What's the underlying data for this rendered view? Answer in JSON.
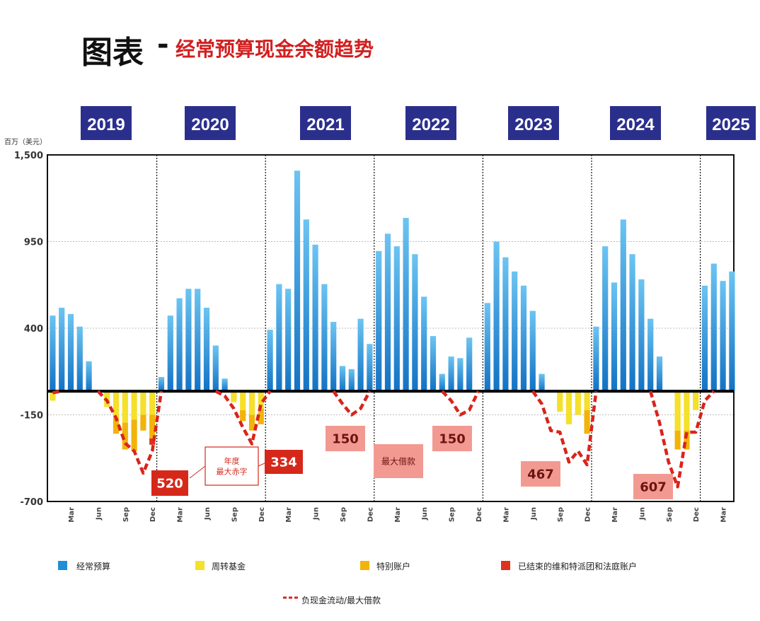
{
  "header": {
    "title_main": "图表",
    "title_dash": "-",
    "title_sub": "经常预算现金余额趋势"
  },
  "chart_data": {
    "type": "bar",
    "unit_label": "百万（美元）",
    "ylim": [
      -700,
      1500
    ],
    "yticks": [
      "1,500",
      "950",
      "400",
      "-150",
      "-700"
    ],
    "ytick_values": [
      1500,
      950,
      400,
      -150,
      -700
    ],
    "years": [
      "2019",
      "2020",
      "2021",
      "2022",
      "2023",
      "2024",
      "2025"
    ],
    "month_ticks": [
      "Mar",
      "Jun",
      "Sep",
      "Dec"
    ],
    "grid": "dashed horizontal",
    "colors": {
      "regular_budget": "#1e8fd6",
      "working_capital": "#f5e02a",
      "special_account": "#f2b40a",
      "closed_missions": "#e0301e",
      "negative_line": "#d9241c",
      "year_box": "#2b2f8c",
      "callout_dark": "#d6281a",
      "callout_light": "#f29a92"
    },
    "series": [
      {
        "name": "经常预算",
        "values": [
          480,
          530,
          490,
          410,
          190,
          0,
          0,
          0,
          0,
          0,
          0,
          0,
          90,
          480,
          590,
          650,
          650,
          530,
          290,
          80,
          0,
          0,
          0,
          0,
          390,
          680,
          650,
          1400,
          1090,
          930,
          680,
          440,
          160,
          140,
          460,
          300,
          890,
          1000,
          920,
          1100,
          870,
          600,
          350,
          110,
          220,
          210,
          340,
          0,
          560,
          950,
          850,
          760,
          670,
          510,
          110,
          0,
          0,
          0,
          0,
          0,
          410,
          920,
          690,
          1090,
          870,
          710,
          460,
          220,
          0,
          0,
          0,
          0,
          670,
          810,
          700,
          760
        ]
      },
      {
        "name": "周转基金",
        "values": [
          -60,
          0,
          0,
          0,
          0,
          0,
          -100,
          -170,
          -200,
          -180,
          -150,
          -150,
          0,
          0,
          0,
          0,
          0,
          0,
          0,
          0,
          -70,
          -120,
          -150,
          -110,
          0,
          0,
          0,
          0,
          0,
          0,
          0,
          0,
          0,
          0,
          0,
          0,
          0,
          0,
          0,
          0,
          0,
          0,
          0,
          0,
          0,
          0,
          0,
          0,
          0,
          0,
          0,
          0,
          0,
          0,
          0,
          0,
          -130,
          -210,
          -150,
          -120,
          0,
          0,
          0,
          0,
          0,
          0,
          0,
          0,
          0,
          -250,
          -250,
          -120,
          0,
          0,
          0,
          0
        ]
      },
      {
        "name": "特别账户",
        "values": [
          0,
          0,
          0,
          0,
          0,
          0,
          0,
          -100,
          -170,
          -200,
          -100,
          -150,
          0,
          0,
          0,
          0,
          0,
          0,
          0,
          0,
          0,
          -70,
          -100,
          -100,
          0,
          0,
          0,
          0,
          0,
          0,
          0,
          0,
          0,
          0,
          0,
          0,
          0,
          0,
          0,
          0,
          0,
          0,
          0,
          0,
          0,
          0,
          0,
          0,
          0,
          0,
          0,
          0,
          0,
          0,
          0,
          0,
          0,
          0,
          0,
          -150,
          0,
          0,
          0,
          0,
          0,
          0,
          0,
          0,
          0,
          -120,
          -120,
          0,
          0,
          0,
          0,
          0
        ]
      },
      {
        "name": "已结束的维和特派团和法庭账户",
        "values": [
          0,
          0,
          0,
          0,
          0,
          0,
          0,
          0,
          0,
          0,
          0,
          -40,
          0,
          0,
          0,
          0,
          0,
          0,
          0,
          0,
          0,
          0,
          0,
          0,
          0,
          0,
          0,
          0,
          0,
          0,
          0,
          0,
          0,
          0,
          0,
          0,
          0,
          0,
          0,
          0,
          0,
          0,
          0,
          0,
          0,
          0,
          0,
          0,
          0,
          0,
          0,
          0,
          0,
          0,
          0,
          0,
          0,
          0,
          0,
          0,
          0,
          0,
          0,
          0,
          0,
          0,
          0,
          0,
          0,
          0,
          0,
          0,
          0,
          0,
          0,
          0
        ]
      },
      {
        "name": "负现金流动/最大借款",
        "style": "dashed-line",
        "values": [
          -10,
          0,
          0,
          0,
          0,
          0,
          -60,
          -170,
          -330,
          -380,
          -520,
          -380,
          0,
          0,
          0,
          0,
          0,
          0,
          0,
          -30,
          -110,
          -230,
          -334,
          -80,
          0,
          0,
          0,
          0,
          0,
          0,
          0,
          0,
          -80,
          -150,
          -110,
          0,
          0,
          0,
          0,
          0,
          0,
          0,
          0,
          0,
          -60,
          -150,
          -120,
          0,
          0,
          0,
          0,
          0,
          0,
          0,
          -80,
          -250,
          -260,
          -450,
          -380,
          -467,
          0,
          0,
          0,
          0,
          0,
          0,
          0,
          -200,
          -450,
          -607,
          -260,
          -260,
          -60,
          0,
          0,
          0
        ]
      }
    ],
    "annotations": [
      {
        "text": "520",
        "style": "dark"
      },
      {
        "text": "年度\n最大赤字",
        "style": "outline"
      },
      {
        "text": "334",
        "style": "dark"
      },
      {
        "text": "150",
        "style": "light"
      },
      {
        "text": "最大借款",
        "style": "light"
      },
      {
        "text": "150",
        "style": "light"
      },
      {
        "text": "467",
        "style": "light"
      },
      {
        "text": "607",
        "style": "light"
      }
    ]
  },
  "legend": [
    {
      "label": "经常预算",
      "color": "#1e8fd6"
    },
    {
      "label": "周转基金",
      "color": "#f5e02a"
    },
    {
      "label": "特别账户",
      "color": "#f2b40a"
    },
    {
      "label": "已结束的维和特派团和法庭账户",
      "color": "#e0301e"
    },
    {
      "label": "负现金流动/最大借款",
      "color": "#d9241c"
    }
  ]
}
